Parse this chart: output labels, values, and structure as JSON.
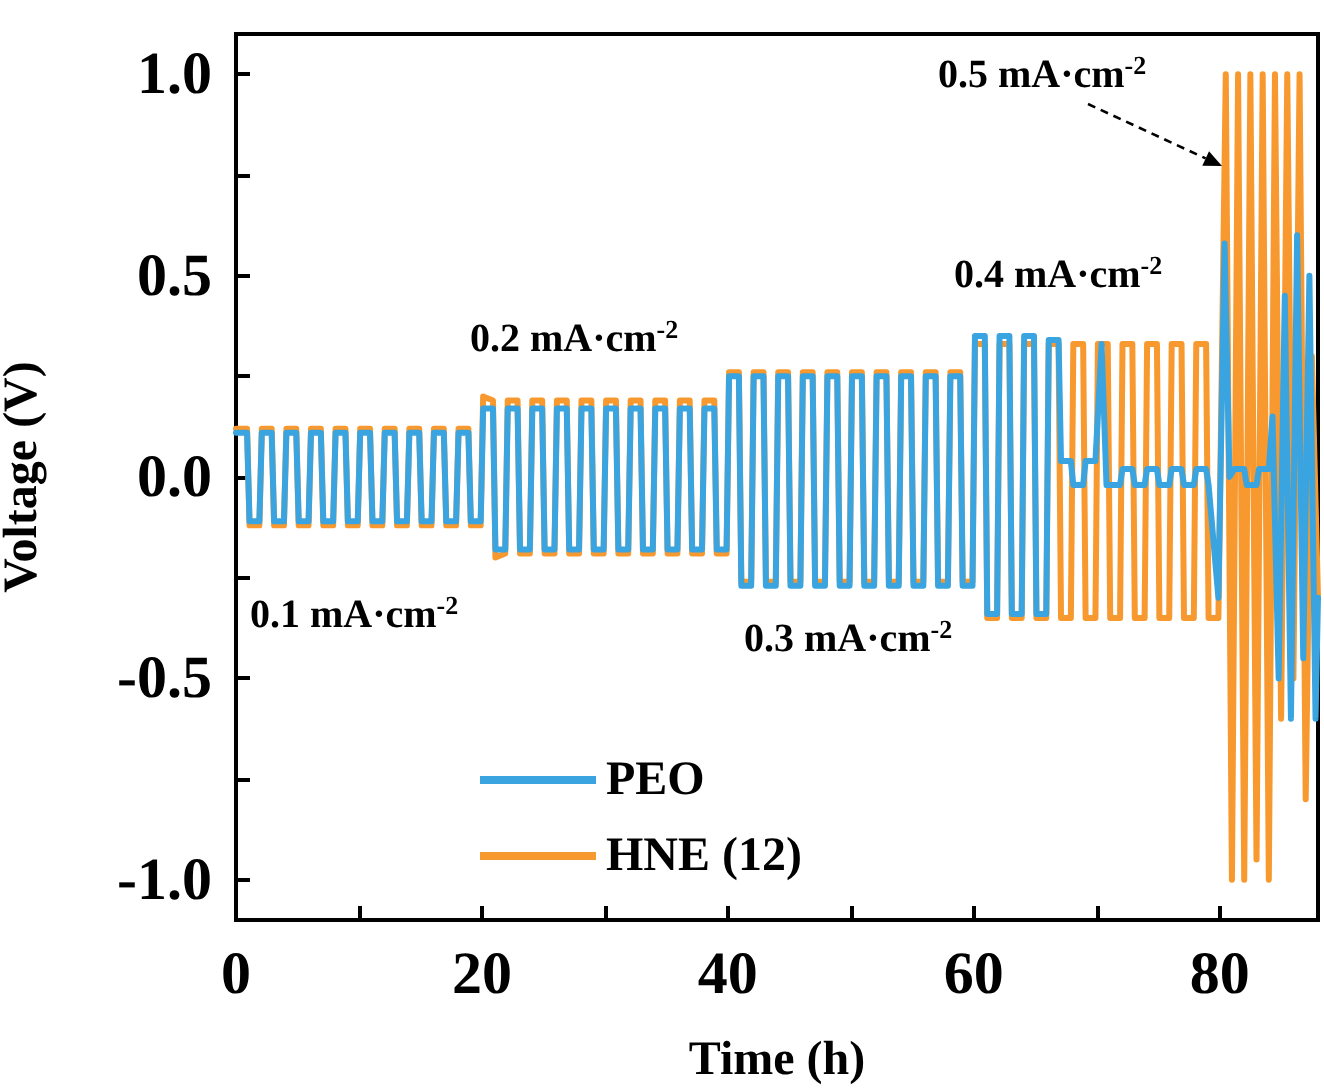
{
  "chart_data": {
    "type": "line",
    "xlabel": "Time (h)",
    "ylabel": "Voltage (V)",
    "xlim": [
      0,
      88
    ],
    "xticks": [
      0,
      {
        "value": 10,
        "label": null
      },
      20,
      {
        "value": 30,
        "label": null
      },
      40,
      {
        "value": 50,
        "label": null
      },
      60,
      {
        "value": 70,
        "label": null
      },
      80
    ],
    "ylim": [
      -1.1,
      1.1
    ],
    "yticks": [
      {
        "value": -1,
        "label": "-1.0"
      },
      {
        "value": -0.75,
        "label": null
      },
      {
        "value": -0.5,
        "label": "-0.5"
      },
      {
        "value": -0.25,
        "label": null
      },
      {
        "value": 0,
        "label": "0.0"
      },
      {
        "value": 0.25,
        "label": null
      },
      {
        "value": 0.5,
        "label": "0.5"
      },
      {
        "value": 0.75,
        "label": null
      },
      {
        "value": 1,
        "label": "1.0"
      }
    ],
    "grid": false,
    "legend": "bottom",
    "marker": "none",
    "line_style": "solid",
    "annotations": [
      "0.1 mA·cm$^{-2}$",
      "0.2 mA·cm$^{-2}$",
      "0.3 mA·cm$^{-2}$",
      "0.4 mA·cm$^{-2}$",
      "0.5 mA·cm$^{-2}$"
    ],
    "series": [
      {
        "name": "PEO",
        "color": "#3aa4e0",
        "x": [
          0,
          0.9,
          1.1,
          1.9,
          2.1,
          2.9,
          3.1,
          3.9,
          4.1,
          4.9,
          5.1,
          5.9,
          6.1,
          6.9,
          7.1,
          7.9,
          8.1,
          8.9,
          9.1,
          9.9,
          10.1,
          10.9,
          11.1,
          11.9,
          12.1,
          12.9,
          13.1,
          13.9,
          14.1,
          14.9,
          15.1,
          15.9,
          16.1,
          16.9,
          17.1,
          17.9,
          18.1,
          18.9,
          19.1,
          19.9,
          20.1,
          20.9,
          21.1,
          21.9,
          22.1,
          22.9,
          23.1,
          23.9,
          24.1,
          24.9,
          25.1,
          25.9,
          26.1,
          26.9,
          27.1,
          27.9,
          28.1,
          28.9,
          29.1,
          29.9,
          30.1,
          30.9,
          31.1,
          31.9,
          32.1,
          32.9,
          33.1,
          33.9,
          34.1,
          34.9,
          35.1,
          35.9,
          36.1,
          36.9,
          37.1,
          37.9,
          38.1,
          38.9,
          39.1,
          39.9,
          40.1,
          40.9,
          41.1,
          41.9,
          42.1,
          42.9,
          43.1,
          43.9,
          44.1,
          44.9,
          45.1,
          45.9,
          46.1,
          46.9,
          47.1,
          47.9,
          48.1,
          48.9,
          49.1,
          49.9,
          50.1,
          50.9,
          51.1,
          51.9,
          52.1,
          52.9,
          53.1,
          53.9,
          54.1,
          54.9,
          55.1,
          55.9,
          56.1,
          56.9,
          57.1,
          57.9,
          58.1,
          58.9,
          59.1,
          59.9,
          60.1,
          60.9,
          61.1,
          61.9,
          62.1,
          62.9,
          63.1,
          63.9,
          64.1,
          64.9,
          65.1,
          65.9,
          66.1,
          66.9,
          67.1,
          67.9,
          68.1,
          68.9,
          69.1,
          69.9,
          70.4,
          70.8,
          71.9,
          72.1,
          72.9,
          73.1,
          73.9,
          74.1,
          74.9,
          75.1,
          75.9,
          76.1,
          76.9,
          77.1,
          77.9,
          78.1,
          78.9,
          79.1,
          79.9,
          80.4,
          80.8,
          81.2,
          82,
          82.2,
          83,
          83.2,
          84,
          84.3,
          84.8,
          85.3,
          85.8,
          86.3,
          86.8,
          87.3,
          87.8,
          88
        ],
        "values": [
          0.11,
          0.11,
          -0.11,
          -0.11,
          0.11,
          0.11,
          -0.11,
          -0.11,
          0.11,
          0.11,
          -0.11,
          -0.11,
          0.11,
          0.11,
          -0.11,
          -0.11,
          0.11,
          0.11,
          -0.11,
          -0.11,
          0.11,
          0.11,
          -0.11,
          -0.11,
          0.11,
          0.11,
          -0.11,
          -0.11,
          0.11,
          0.11,
          -0.11,
          -0.11,
          0.11,
          0.11,
          -0.11,
          -0.11,
          0.11,
          0.11,
          -0.11,
          -0.11,
          0.17,
          0.17,
          -0.18,
          -0.18,
          0.17,
          0.17,
          -0.18,
          -0.18,
          0.17,
          0.17,
          -0.18,
          -0.18,
          0.17,
          0.17,
          -0.18,
          -0.18,
          0.17,
          0.17,
          -0.18,
          -0.18,
          0.17,
          0.17,
          -0.18,
          -0.18,
          0.17,
          0.17,
          -0.18,
          -0.18,
          0.17,
          0.17,
          -0.18,
          -0.18,
          0.17,
          0.17,
          -0.18,
          -0.18,
          0.17,
          0.17,
          -0.18,
          -0.18,
          0.25,
          0.25,
          -0.27,
          -0.27,
          0.25,
          0.25,
          -0.27,
          -0.27,
          0.25,
          0.25,
          -0.27,
          -0.27,
          0.25,
          0.25,
          -0.27,
          -0.27,
          0.25,
          0.25,
          -0.27,
          -0.27,
          0.25,
          0.25,
          -0.27,
          -0.27,
          0.25,
          0.25,
          -0.27,
          -0.27,
          0.25,
          0.25,
          -0.27,
          -0.27,
          0.25,
          0.25,
          -0.27,
          -0.27,
          0.25,
          0.25,
          -0.27,
          -0.27,
          0.35,
          0.35,
          -0.34,
          -0.34,
          0.35,
          0.35,
          -0.34,
          -0.34,
          0.35,
          0.35,
          -0.34,
          -0.34,
          0.34,
          0.34,
          0.04,
          0.04,
          -0.02,
          -0.02,
          0.04,
          0.04,
          0.33,
          -0.02,
          -0.02,
          0.02,
          0.02,
          -0.02,
          -0.02,
          0.02,
          0.02,
          -0.02,
          -0.02,
          0.02,
          0.02,
          -0.02,
          -0.02,
          0.02,
          0.02,
          -0.02,
          -0.3,
          0.58,
          0,
          0.02,
          0.02,
          -0.02,
          -0.02,
          0.02,
          0.02,
          0.15,
          -0.5,
          0.45,
          -0.6,
          0.6,
          -0.45,
          0.5,
          -0.6,
          -0.3
        ]
      },
      {
        "name": "HNE (12)",
        "color": "#f7992e",
        "x": [
          0,
          0.9,
          1.1,
          1.9,
          2.1,
          2.9,
          3.1,
          3.9,
          4.1,
          4.9,
          5.1,
          5.9,
          6.1,
          6.9,
          7.1,
          7.9,
          8.1,
          8.9,
          9.1,
          9.9,
          10.1,
          10.9,
          11.1,
          11.9,
          12.1,
          12.9,
          13.1,
          13.9,
          14.1,
          14.9,
          15.1,
          15.9,
          16.1,
          16.9,
          17.1,
          17.9,
          18.1,
          18.9,
          19.1,
          19.9,
          20.1,
          20.9,
          21.1,
          21.9,
          22.1,
          22.9,
          23.1,
          23.9,
          24.1,
          24.9,
          25.1,
          25.9,
          26.1,
          26.9,
          27.1,
          27.9,
          28.1,
          28.9,
          29.1,
          29.9,
          30.1,
          30.9,
          31.1,
          31.9,
          32.1,
          32.9,
          33.1,
          33.9,
          34.1,
          34.9,
          35.1,
          35.9,
          36.1,
          36.9,
          37.1,
          37.9,
          38.1,
          38.9,
          39.1,
          39.9,
          40.1,
          40.9,
          41.1,
          41.9,
          42.1,
          42.9,
          43.1,
          43.9,
          44.1,
          44.9,
          45.1,
          45.9,
          46.1,
          46.9,
          47.1,
          47.9,
          48.1,
          48.9,
          49.1,
          49.9,
          50.1,
          50.9,
          51.1,
          51.9,
          52.1,
          52.9,
          53.1,
          53.9,
          54.1,
          54.9,
          55.1,
          55.9,
          56.1,
          56.9,
          57.1,
          57.9,
          58.1,
          58.9,
          59.1,
          59.9,
          60.1,
          60.9,
          61.1,
          61.9,
          62.1,
          62.9,
          63.1,
          63.9,
          64.1,
          64.9,
          65.1,
          65.9,
          66.1,
          66.9,
          67.1,
          67.9,
          68.1,
          68.9,
          69.1,
          69.9,
          70.1,
          70.9,
          71.1,
          71.9,
          72.1,
          72.9,
          73.1,
          73.9,
          74.1,
          74.9,
          75.1,
          75.9,
          76.1,
          76.9,
          77.1,
          77.9,
          78.1,
          78.9,
          79.1,
          79.9,
          80.5,
          81,
          81.5,
          82,
          82.5,
          83,
          83.5,
          84,
          84.5,
          85,
          85.5,
          86,
          86.5,
          87,
          87.5,
          88
        ],
        "values": [
          0.12,
          0.12,
          -0.12,
          -0.12,
          0.12,
          0.12,
          -0.12,
          -0.12,
          0.12,
          0.12,
          -0.12,
          -0.12,
          0.12,
          0.12,
          -0.12,
          -0.12,
          0.12,
          0.12,
          -0.12,
          -0.12,
          0.12,
          0.12,
          -0.12,
          -0.12,
          0.12,
          0.12,
          -0.12,
          -0.12,
          0.12,
          0.12,
          -0.12,
          -0.12,
          0.12,
          0.12,
          -0.12,
          -0.12,
          0.12,
          0.12,
          -0.12,
          -0.12,
          0.2,
          0.19,
          -0.2,
          -0.19,
          0.19,
          0.19,
          -0.19,
          -0.19,
          0.19,
          0.19,
          -0.19,
          -0.19,
          0.19,
          0.19,
          -0.19,
          -0.19,
          0.19,
          0.19,
          -0.19,
          -0.19,
          0.19,
          0.19,
          -0.19,
          -0.19,
          0.19,
          0.19,
          -0.19,
          -0.19,
          0.19,
          0.19,
          -0.19,
          -0.19,
          0.19,
          0.19,
          -0.19,
          -0.19,
          0.19,
          0.19,
          -0.19,
          -0.19,
          0.26,
          0.26,
          -0.26,
          -0.26,
          0.26,
          0.26,
          -0.26,
          -0.26,
          0.26,
          0.26,
          -0.26,
          -0.26,
          0.26,
          0.26,
          -0.26,
          -0.26,
          0.26,
          0.26,
          -0.26,
          -0.26,
          0.26,
          0.26,
          -0.26,
          -0.26,
          0.26,
          0.26,
          -0.26,
          -0.26,
          0.26,
          0.26,
          -0.26,
          -0.26,
          0.26,
          0.26,
          -0.26,
          -0.26,
          0.26,
          0.26,
          -0.26,
          -0.26,
          0.33,
          0.33,
          -0.35,
          -0.35,
          0.33,
          0.33,
          -0.35,
          -0.35,
          0.33,
          0.33,
          -0.35,
          -0.35,
          0.33,
          0.33,
          -0.35,
          -0.35,
          0.33,
          0.33,
          -0.35,
          -0.35,
          0.33,
          0.33,
          -0.35,
          -0.35,
          0.33,
          0.33,
          -0.35,
          -0.35,
          0.33,
          0.33,
          -0.35,
          -0.35,
          0.33,
          0.33,
          -0.35,
          -0.35,
          0.33,
          0.33,
          -0.35,
          -0.35,
          1,
          -1,
          1,
          -1,
          1,
          -0.95,
          1,
          -1,
          1,
          -0.6,
          1,
          -0.5,
          1,
          -0.8,
          0.3,
          -0.3
        ]
      }
    ]
  }
}
